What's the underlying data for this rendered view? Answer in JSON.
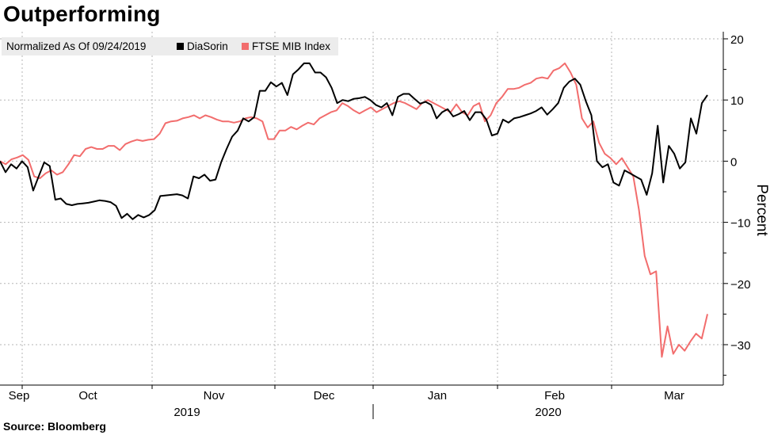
{
  "title": "Outperforming",
  "source": "Source: Bloomberg",
  "chart_data": {
    "type": "line",
    "title": "Outperforming",
    "ylabel": "Percent",
    "xlabel": "",
    "ylim": [
      -37,
      20
    ],
    "yticks": [
      20,
      10,
      0,
      -10,
      -20,
      -30
    ],
    "legend": {
      "normalized_label": "Normalized As Of 09/24/2019",
      "placement": "top-left"
    },
    "months": [
      "Sep",
      "Oct",
      "Nov",
      "Dec",
      "Jan",
      "Feb",
      "Mar"
    ],
    "years": [
      "2019",
      "2020"
    ],
    "series": [
      {
        "name": "DiaSorin",
        "color": "#000000",
        "values": [
          0,
          -1.8,
          -0.5,
          -1.2,
          0,
          -1.0,
          -4.8,
          -2.5,
          -0.2,
          -0.8,
          -6.3,
          -6.1,
          -7.0,
          -7.2,
          -7.0,
          -6.9,
          -6.8,
          -6.6,
          -6.4,
          -6.5,
          -6.7,
          -7.3,
          -9.3,
          -8.6,
          -9.5,
          -8.8,
          -9.2,
          -8.8,
          -8.0,
          -5.7,
          -5.6,
          -5.5,
          -5.4,
          -5.6,
          -6.1,
          -2.5,
          -2.8,
          -2.2,
          -3.2,
          -3.0,
          -0.2,
          2.0,
          4.0,
          5.0,
          7.0,
          6.5,
          7.2,
          11.5,
          11.5,
          12.9,
          12.2,
          12.8,
          10.8,
          14.2,
          15.0,
          16.0,
          16.0,
          14.5,
          14.5,
          13.7,
          12.0,
          9.5,
          10.0,
          9.8,
          10.2,
          10.3,
          10.5,
          10.0,
          9.2,
          8.8,
          9.5,
          7.5,
          10.5,
          11.0,
          11.0,
          10.2,
          9.4,
          9.7,
          9.2,
          7.0,
          8.0,
          8.5,
          7.3,
          7.7,
          8.2,
          6.7,
          8.0,
          8.0,
          6.8,
          4.2,
          4.5,
          6.8,
          6.3,
          7.0,
          7.2,
          7.5,
          7.8,
          8.2,
          8.8,
          7.6,
          8.5,
          9.5,
          12.0,
          13.0,
          13.5,
          12.5,
          9.8,
          7.5,
          0.0,
          -1.0,
          -0.5,
          -3.5,
          -4.0,
          -1.5,
          -2.0,
          -2.5,
          -3.0,
          -5.5,
          -2.0,
          5.8,
          -3.5,
          2.5,
          1.2,
          -1.2,
          -0.2,
          7.0,
          4.5,
          9.5,
          10.8
        ]
      },
      {
        "name": "FTSE MIB Index",
        "color": "#f26d6d",
        "values": [
          0,
          -0.5,
          0.3,
          0.6,
          1.0,
          0.2,
          -2.5,
          -2.8,
          -2.0,
          -1.5,
          -2.2,
          -1.8,
          -0.5,
          1.0,
          0.8,
          2.0,
          2.3,
          2.0,
          2.0,
          2.5,
          2.5,
          1.8,
          2.8,
          3.2,
          3.5,
          3.3,
          3.5,
          3.6,
          4.5,
          6.2,
          6.5,
          6.6,
          7.0,
          7.2,
          7.5,
          7.0,
          7.5,
          7.2,
          6.8,
          6.5,
          6.5,
          6.3,
          6.5,
          7.0,
          7.2,
          7.0,
          6.5,
          3.6,
          3.6,
          5.0,
          5.0,
          5.6,
          5.2,
          5.8,
          6.3,
          6.0,
          7.0,
          7.5,
          8.0,
          8.3,
          9.5,
          9.0,
          8.3,
          7.8,
          8.3,
          8.8,
          8.0,
          8.5,
          9.0,
          9.5,
          9.8,
          9.5,
          9.0,
          8.5,
          9.5,
          10.0,
          9.5,
          9.0,
          8.5,
          8.0,
          9.3,
          8.0,
          7.5,
          9.0,
          9.5,
          6.5,
          7.5,
          9.5,
          10.5,
          11.8,
          11.8,
          12.0,
          12.5,
          12.8,
          13.5,
          13.7,
          13.5,
          14.8,
          15.2,
          16.0,
          14.5,
          12.5,
          7.0,
          5.5,
          6.5,
          3.0,
          1.2,
          0.5,
          -0.5,
          0.5,
          -1.0,
          -2.5,
          -8.0,
          -15.5,
          -18.5,
          -18.0,
          -32.0,
          -27.0,
          -31.5,
          -30.0,
          -31.0,
          -29.5,
          -28.2,
          -29.0,
          -25.0
        ]
      }
    ]
  }
}
